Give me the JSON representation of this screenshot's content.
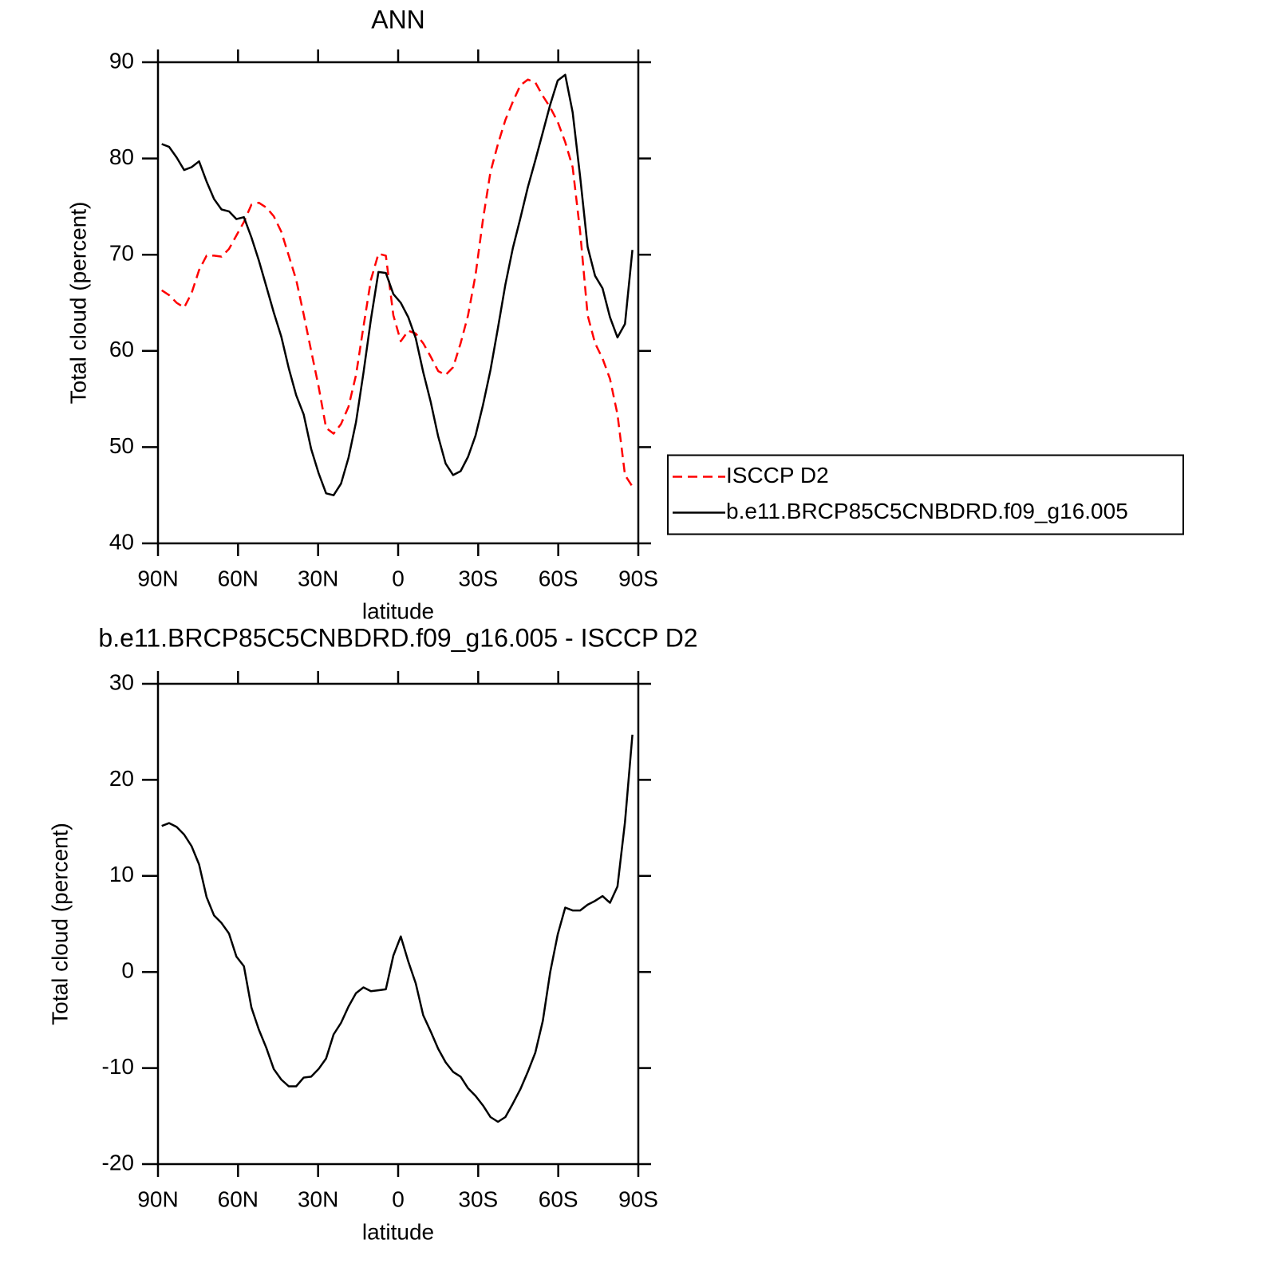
{
  "chart_data": [
    {
      "type": "line",
      "title": "ANN",
      "xlabel": "latitude",
      "ylabel": "Total cloud (percent)",
      "x": [
        88.6,
        85.8,
        83,
        80.2,
        77.4,
        74.6,
        71.8,
        69,
        66.2,
        63.4,
        60.6,
        57.8,
        55,
        52.2,
        49.4,
        46.6,
        43.8,
        41,
        38.2,
        35.4,
        32.6,
        29.8,
        27,
        24.2,
        21.4,
        18.6,
        15.8,
        13,
        10.2,
        7.4,
        4.6,
        1.8,
        -1,
        -3.8,
        -6.6,
        -9.4,
        -12.2,
        -15,
        -17.8,
        -20.6,
        -23.4,
        -26.2,
        -29,
        -31.8,
        -34.6,
        -37.4,
        -40.2,
        -43,
        -45.8,
        -48.6,
        -51.4,
        -54.2,
        -57,
        -59.8,
        -62.6,
        -65.4,
        -68.2,
        -71,
        -73.8,
        -76.6,
        -79.4,
        -82.2,
        -85,
        -87.8
      ],
      "series": [
        {
          "name": "ISCCP D2",
          "color": "#ff0000",
          "linestyle": "dashed",
          "values": [
            66.3,
            65.8,
            65.0,
            64.5,
            66.0,
            68.4,
            69.9,
            69.9,
            69.8,
            70.6,
            72.0,
            73.4,
            75.2,
            75.4,
            74.9,
            74.0,
            72.4,
            69.9,
            67.4,
            63.8,
            60.0,
            56.3,
            52.0,
            51.4,
            52.4,
            54.2,
            57.5,
            62.5,
            67.4,
            70.1,
            69.9,
            63.7,
            61.0,
            62.1,
            61.8,
            60.8,
            59.4,
            57.9,
            57.5,
            58.3,
            60.8,
            63.7,
            67.9,
            73.7,
            78.6,
            81.5,
            84.0,
            85.9,
            87.6,
            88.2,
            87.9,
            86.5,
            85.3,
            83.8,
            81.7,
            79.1,
            72.4,
            63.7,
            60.8,
            59.2,
            57.1,
            53.4,
            47.1,
            45.9
          ]
        },
        {
          "name": "b.e11.BRCP85C5CNBDRD.f09_g16.005",
          "color": "#000000",
          "linestyle": "solid",
          "values": [
            81.5,
            81.2,
            80.1,
            78.8,
            79.1,
            79.7,
            77.6,
            75.8,
            74.7,
            74.5,
            73.7,
            73.9,
            71.8,
            69.4,
            66.7,
            64.0,
            61.5,
            58.2,
            55.4,
            53.4,
            49.8,
            47.3,
            45.2,
            45.0,
            46.2,
            48.9,
            52.6,
            57.7,
            63.3,
            68.2,
            68.1,
            65.9,
            65.0,
            63.5,
            61.3,
            57.8,
            54.7,
            51.1,
            48.3,
            47.1,
            47.5,
            49.0,
            51.2,
            54.4,
            58.0,
            62.4,
            66.9,
            70.7,
            73.8,
            77.0,
            79.8,
            82.7,
            85.6,
            88.1,
            88.7,
            84.8,
            78.1,
            70.8,
            67.8,
            66.5,
            63.5,
            61.4,
            62.8,
            70.5
          ]
        }
      ],
      "xlim": [
        90,
        -90
      ],
      "xticks": [
        {
          "value": 90,
          "label": "90N"
        },
        {
          "value": 60,
          "label": "60N"
        },
        {
          "value": 30,
          "label": "30N"
        },
        0,
        {
          "value": -30,
          "label": "30S"
        },
        {
          "value": -60,
          "label": "60S"
        },
        {
          "value": -90,
          "label": "90S"
        }
      ],
      "ylim": [
        40,
        90
      ],
      "yticks": [
        40,
        50,
        60,
        70,
        80,
        90
      ],
      "legend": "right"
    },
    {
      "type": "line",
      "title": "b.e11.BRCP85C5CNBDRD.f09_g16.005 - ISCCP D2",
      "xlabel": "latitude",
      "ylabel": "Total cloud (percent)",
      "x": [
        88.6,
        85.8,
        83,
        80.2,
        77.4,
        74.6,
        71.8,
        69,
        66.2,
        63.4,
        60.6,
        57.8,
        55,
        52.2,
        49.4,
        46.6,
        43.8,
        41,
        38.2,
        35.4,
        32.6,
        29.8,
        27,
        24.2,
        21.4,
        18.6,
        15.8,
        13,
        10.2,
        7.4,
        4.6,
        1.8,
        -1,
        -3.8,
        -6.6,
        -9.4,
        -12.2,
        -15,
        -17.8,
        -20.6,
        -23.4,
        -26.2,
        -29,
        -31.8,
        -34.6,
        -37.4,
        -40.2,
        -43,
        -45.8,
        -48.6,
        -51.4,
        -54.2,
        -57,
        -59.8,
        -62.6,
        -65.4,
        -68.2,
        -71,
        -73.8,
        -76.6,
        -79.4,
        -82.2,
        -85,
        -87.8
      ],
      "values": [
        15.2,
        15.5,
        15.1,
        14.3,
        13.1,
        11.2,
        7.8,
        5.9,
        5.1,
        4.0,
        1.6,
        0.6,
        -3.7,
        -6.0,
        -7.9,
        -10.1,
        -11.2,
        -11.9,
        -11.9,
        -11.0,
        -10.9,
        -10.1,
        -9.0,
        -6.5,
        -5.3,
        -3.6,
        -2.2,
        -1.6,
        -2.0,
        -1.9,
        -1.8,
        1.7,
        3.7,
        1.1,
        -1.2,
        -4.5,
        -6.2,
        -8.0,
        -9.4,
        -10.4,
        -10.9,
        -12.1,
        -12.9,
        -13.9,
        -15.1,
        -15.6,
        -15.1,
        -13.7,
        -12.2,
        -10.4,
        -8.4,
        -5.1,
        0.0,
        3.9,
        6.7,
        6.4,
        6.4,
        7.0,
        7.4,
        7.9,
        7.2,
        8.9,
        15.6,
        24.7
      ],
      "color": "#000000",
      "xlim": [
        90,
        -90
      ],
      "xticks": [
        {
          "value": 90,
          "label": "90N"
        },
        {
          "value": 60,
          "label": "60N"
        },
        {
          "value": 30,
          "label": "30N"
        },
        0,
        {
          "value": -30,
          "label": "30S"
        },
        {
          "value": -60,
          "label": "60S"
        },
        {
          "value": -90,
          "label": "90S"
        }
      ],
      "ylim": [
        -20,
        30
      ],
      "yticks": [
        -20,
        -10,
        0,
        10,
        20,
        30
      ]
    }
  ]
}
